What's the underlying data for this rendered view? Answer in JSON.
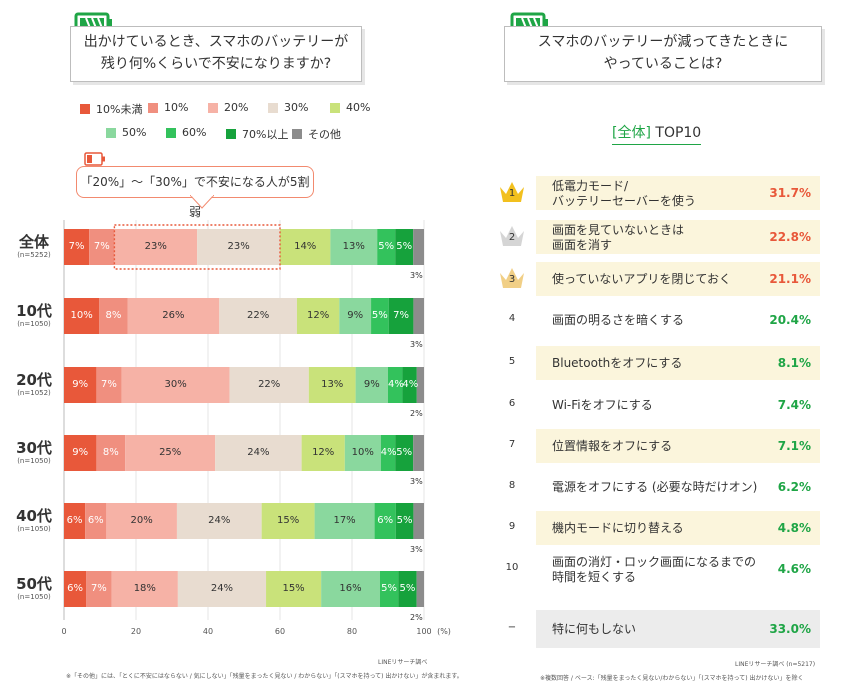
{
  "left": {
    "question": [
      "出かけているとき、スマホのバッテリーが",
      "残り何%くらいで不安になりますか?"
    ],
    "callout": "「20%」〜「30%」で不安になる人が5割弱",
    "legend": [
      {
        "label": "10%未満",
        "color": "#e8583a"
      },
      {
        "label": "10%",
        "color": "#f08f7f"
      },
      {
        "label": "20%",
        "color": "#f6b2a6"
      },
      {
        "label": "30%",
        "color": "#e8dcd0"
      },
      {
        "label": "40%",
        "color": "#c9e27a"
      },
      {
        "label": "50%",
        "color": "#8ad89e"
      },
      {
        "label": "60%",
        "color": "#33c25c"
      },
      {
        "label": "70%以上",
        "color": "#16a23c"
      },
      {
        "label": "その他",
        "color": "#8c8c8c"
      }
    ],
    "source": "LINEリサーチ調べ",
    "footnote": "※「その他」には、「とくに不安にはならない / 気にしない」「残量をまったく見ない / わからない」「(スマホを持って) 出かけない」が含まれます。"
  },
  "chart_data": {
    "type": "bar",
    "orientation": "horizontal-stacked-100",
    "xlim": [
      0,
      100
    ],
    "xticks": [
      "0",
      "20",
      "40",
      "60",
      "80",
      "100"
    ],
    "xunit": "(%)",
    "categories": [
      "全体",
      "10代",
      "20代",
      "30代",
      "40代",
      "50代"
    ],
    "category_n": [
      "(n=5252)",
      "(n=1050)",
      "(n=1052)",
      "(n=1050)",
      "(n=1050)",
      "(n=1050)"
    ],
    "series": [
      {
        "name": "10%未満",
        "values": [
          7,
          10,
          9,
          9,
          6,
          6
        ]
      },
      {
        "name": "10%",
        "values": [
          7,
          8,
          7,
          8,
          6,
          7
        ]
      },
      {
        "name": "20%",
        "values": [
          23,
          26,
          30,
          25,
          20,
          18
        ]
      },
      {
        "name": "30%",
        "values": [
          23,
          22,
          22,
          24,
          24,
          24
        ]
      },
      {
        "name": "40%",
        "values": [
          14,
          12,
          13,
          12,
          15,
          15
        ]
      },
      {
        "name": "50%",
        "values": [
          13,
          9,
          9,
          10,
          17,
          16
        ]
      },
      {
        "name": "60%",
        "values": [
          5,
          5,
          4,
          4,
          6,
          5
        ]
      },
      {
        "name": "70%以上",
        "values": [
          5,
          7,
          4,
          5,
          5,
          5
        ]
      },
      {
        "name": "その他",
        "values": [
          3,
          3,
          2,
          3,
          3,
          2
        ]
      }
    ],
    "bar_labels": [
      [
        "7%",
        "7%",
        "23%",
        "23%",
        "14%",
        "13%",
        "5%",
        "5%",
        "3%"
      ],
      [
        "10%",
        "8%",
        "26%",
        "22%",
        "12%",
        "9%",
        "5%",
        "7%",
        "3%"
      ],
      [
        "9%",
        "7%",
        "30%",
        "22%",
        "13%",
        "9%",
        "4%",
        "4%",
        "2%"
      ],
      [
        "9%",
        "8%",
        "25%",
        "24%",
        "12%",
        "10%",
        "4%",
        "5%",
        "3%"
      ],
      [
        "6%",
        "6%",
        "20%",
        "24%",
        "15%",
        "17%",
        "6%",
        "5%",
        "3%"
      ],
      [
        "6%",
        "7%",
        "18%",
        "24%",
        "15%",
        "16%",
        "5%",
        "5%",
        "2%"
      ]
    ]
  },
  "right": {
    "question": [
      "スマホのバッテリーが減ってきたときに",
      "やっていることは?"
    ],
    "subtitle_bracket": "[全体]",
    "subtitle_text": "TOP10",
    "ranking": [
      {
        "rank": "1",
        "lines": [
          "低電力モード/",
          "バッテリーセーバーを使う"
        ],
        "value": "31.7%",
        "color": "#e8583a",
        "crown": "gold"
      },
      {
        "rank": "2",
        "lines": [
          "画面を見ていないときは",
          "画面を消す"
        ],
        "value": "22.8%",
        "color": "#e8583a",
        "crown": "silver"
      },
      {
        "rank": "3",
        "lines": [
          "使っていないアプリを閉じておく"
        ],
        "value": "21.1%",
        "color": "#e8583a",
        "crown": "bronze"
      },
      {
        "rank": "4",
        "lines": [
          "画面の明るさを暗くする"
        ],
        "value": "20.4%",
        "color": "#1fa546",
        "crown": ""
      },
      {
        "rank": "5",
        "lines": [
          "Bluetoothをオフにする"
        ],
        "value": "8.1%",
        "color": "#1fa546",
        "crown": ""
      },
      {
        "rank": "6",
        "lines": [
          "Wi-Fiをオフにする"
        ],
        "value": "7.4%",
        "color": "#1fa546",
        "crown": ""
      },
      {
        "rank": "7",
        "lines": [
          "位置情報をオフにする"
        ],
        "value": "7.1%",
        "color": "#1fa546",
        "crown": ""
      },
      {
        "rank": "8",
        "lines": [
          "電源をオフにする (必要な時だけオン)"
        ],
        "value": "6.2%",
        "color": "#1fa546",
        "crown": ""
      },
      {
        "rank": "9",
        "lines": [
          "機内モードに切り替える"
        ],
        "value": "4.8%",
        "color": "#1fa546",
        "crown": ""
      },
      {
        "rank": "10",
        "lines": [
          "画面の消灯・ロック画面になるまでの",
          "時間を短くする"
        ],
        "value": "4.6%",
        "color": "#1fa546",
        "crown": ""
      }
    ],
    "none": {
      "rank": "−",
      "label": "特に何もしない",
      "value": "33.0%"
    },
    "source": "LINEリサーチ調べ (n=5217)",
    "footnote": "※複数回答 / ベース:「残量をまったく見ない/わからない」「(スマホを持って) 出かけない」を除く"
  }
}
